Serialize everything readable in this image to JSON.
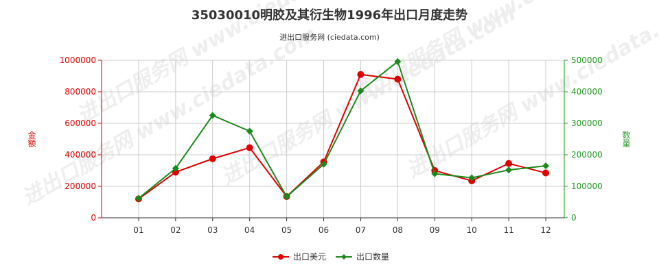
{
  "chart_data": {
    "type": "line",
    "title": "35030010明胶及其衍生物1996年出口月度走势",
    "subtitle": "进出口服务网 (ciedata.com)",
    "watermark": "进出口服务网 www.ciedata.com",
    "categories": [
      "01",
      "02",
      "03",
      "04",
      "05",
      "06",
      "07",
      "08",
      "09",
      "10",
      "11",
      "12"
    ],
    "y_left": {
      "label": "金额",
      "min": 0,
      "max": 1000000,
      "ticks": [
        0,
        200000,
        400000,
        600000,
        800000,
        1000000
      ],
      "color": "#e00000"
    },
    "y_right": {
      "label": "数量",
      "min": 0,
      "max": 500000,
      "ticks": [
        0,
        100000,
        200000,
        300000,
        400000,
        500000
      ],
      "color": "#229922"
    },
    "series": [
      {
        "name": "出口美元",
        "axis": "left",
        "color": "#e00000",
        "marker": "circle",
        "values": [
          120000,
          290000,
          375000,
          445000,
          135000,
          355000,
          910000,
          880000,
          300000,
          235000,
          345000,
          285000
        ]
      },
      {
        "name": "出口数量",
        "axis": "right",
        "color": "#1a8a1a",
        "marker": "diamond",
        "values": [
          62000,
          157000,
          325000,
          275000,
          67000,
          170000,
          403000,
          496000,
          140000,
          127000,
          152000,
          165000
        ]
      }
    ],
    "grid": true,
    "legend_position": "bottom"
  }
}
